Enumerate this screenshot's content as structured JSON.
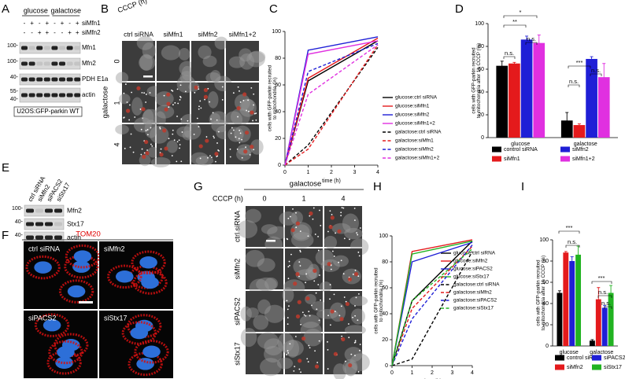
{
  "panel_labels": [
    "A",
    "B",
    "C",
    "D",
    "E",
    "F",
    "G",
    "H",
    "I"
  ],
  "panel_a": {
    "conditions": [
      "glucose",
      "galactose"
    ],
    "rows": [
      {
        "name": "siMfn1",
        "signs": [
          "-",
          "+",
          "-",
          "+",
          "-",
          "+",
          "-",
          "+"
        ]
      },
      {
        "name": "siMfn2",
        "signs": [
          "-",
          "-",
          "+",
          "+",
          "-",
          "-",
          "+",
          "+"
        ]
      }
    ],
    "blots": [
      {
        "label": "Mfn1",
        "markers": [
          "100-"
        ]
      },
      {
        "label": "Mfn2",
        "markers": [
          "100-"
        ]
      },
      {
        "label": "PDH E1a",
        "markers": [
          "40-"
        ]
      },
      {
        "label": "actin",
        "markers": [
          "55-",
          "40-"
        ]
      }
    ],
    "cell_line": "U2OS:GFP-parkin WT"
  },
  "panel_b": {
    "treatment_label": "CCCP (h)",
    "condition": "galactose",
    "columns": [
      "ctrl siRNA",
      "siMfn1",
      "siMfn2",
      "siMfn1+2"
    ],
    "rows": [
      "0",
      "1",
      "4"
    ]
  },
  "panel_e": {
    "lanes": [
      "ctrl siRNA",
      "siMfn2",
      "siPACS2",
      "siStx17"
    ],
    "blots": [
      {
        "label": "Mfn2",
        "marker": "100-"
      },
      {
        "label": "Stx17",
        "marker": "40-"
      },
      {
        "label": "actin",
        "marker": "40-"
      }
    ]
  },
  "panel_f": {
    "stain": "TOM20",
    "images": [
      "ctrl siRNA",
      "siMfn2",
      "siPACS2",
      "siStx17"
    ]
  },
  "panel_g": {
    "condition": "galactose",
    "treatment_label": "CCCP (h)",
    "columns": [
      "0",
      "1",
      "4"
    ],
    "rows": [
      "ctrl siRNA",
      "siMfn2",
      "siPACS2",
      "siStx17"
    ]
  },
  "chart_data": [
    {
      "type": "line",
      "xlabel": "time (h)",
      "ylabel": [
        "cells with GFP-parkin recruited",
        "to mitochondria (%)"
      ],
      "x": [
        0,
        1,
        4
      ],
      "xlim": [
        0,
        4
      ],
      "xticks": [
        0,
        1,
        2,
        3,
        4
      ],
      "ylim": [
        0,
        100
      ],
      "yticks": [
        0,
        20,
        40,
        60,
        80,
        100
      ],
      "series": [
        {
          "name": "glucose:ctrl siRNA",
          "color": "#000000",
          "line_style": "solid",
          "values": [
            0,
            63,
            93
          ]
        },
        {
          "name": "glucose:siMfn1",
          "color": "#e41a1c",
          "line_style": "solid",
          "values": [
            0,
            65,
            95
          ]
        },
        {
          "name": "glucose:siMfn2",
          "color": "#1f1fd6",
          "line_style": "solid",
          "values": [
            0,
            86,
            96
          ]
        },
        {
          "name": "glucose:siMfn1+2",
          "color": "#e030e0",
          "line_style": "solid",
          "values": [
            0,
            83,
            93
          ]
        },
        {
          "name": "galactose:ctrl siRNA",
          "color": "#000000",
          "line_style": "dashed",
          "values": [
            0,
            15,
            88
          ]
        },
        {
          "name": "galactose:siMfn1",
          "color": "#e41a1c",
          "line_style": "dashed",
          "values": [
            0,
            12,
            90
          ]
        },
        {
          "name": "galactose:siMfn2",
          "color": "#1f1fd6",
          "line_style": "dashed",
          "values": [
            0,
            70,
            91
          ]
        },
        {
          "name": "galactose:siMfn1+2",
          "color": "#e030e0",
          "line_style": "dashed",
          "values": [
            0,
            53,
            90
          ]
        }
      ]
    },
    {
      "type": "bar",
      "ylabel": [
        "cells with GFP-parkin recruited",
        "to mitochondria after 1h CCCP (%)"
      ],
      "categories": [
        "glucose",
        "galactose"
      ],
      "ylim": [
        0,
        100
      ],
      "yticks": [
        0,
        20,
        40,
        60,
        80,
        100
      ],
      "series": [
        {
          "name": "control siRNA",
          "color": "#000000",
          "values": [
            63,
            15
          ],
          "errors": [
            4,
            7
          ]
        },
        {
          "name": "siMfn1",
          "color": "#e41a1c",
          "values": [
            65,
            11
          ],
          "errors": [
            1,
            1
          ]
        },
        {
          "name": "siMfn2",
          "color": "#1f1fd6",
          "values": [
            86,
            69
          ],
          "errors": [
            3,
            2
          ]
        },
        {
          "name": "siMfn1+2",
          "color": "#e030e0",
          "values": [
            83,
            53
          ],
          "errors": [
            7,
            12
          ]
        }
      ],
      "annotations": [
        "n.s.",
        "*",
        "**",
        "n.s.",
        "***",
        "n.s.",
        "n.s."
      ]
    },
    {
      "type": "line",
      "xlabel": "time (h)",
      "ylabel": [
        "cells with GFP-parkin recruited",
        "to mitochondria (%)"
      ],
      "x": [
        0,
        1,
        4
      ],
      "xlim": [
        0,
        4
      ],
      "xticks": [
        0,
        1,
        2,
        3,
        4
      ],
      "ylim": [
        0,
        100
      ],
      "yticks": [
        0,
        20,
        40,
        60,
        80,
        100
      ],
      "series": [
        {
          "name": "glucose:ctrl siRNA",
          "color": "#000000",
          "line_style": "solid",
          "values": [
            0,
            50,
            96
          ]
        },
        {
          "name": "glucose:siMfn2",
          "color": "#e41a1c",
          "line_style": "solid",
          "values": [
            0,
            88,
            97
          ]
        },
        {
          "name": "glucose:siPACS2",
          "color": "#1f1fd6",
          "line_style": "solid",
          "values": [
            0,
            80,
            95
          ]
        },
        {
          "name": "glucose:siStx17",
          "color": "#22b322",
          "line_style": "solid",
          "values": [
            0,
            86,
            96
          ]
        },
        {
          "name": "galactose:ctrl siRNA",
          "color": "#000000",
          "line_style": "dashed",
          "values": [
            0,
            5,
            88
          ]
        },
        {
          "name": "galactose:siMfn2",
          "color": "#e41a1c",
          "line_style": "dashed",
          "values": [
            0,
            44,
            92
          ]
        },
        {
          "name": "galactose:siPACS2",
          "color": "#1f1fd6",
          "line_style": "dashed",
          "values": [
            0,
            36,
            93
          ]
        },
        {
          "name": "galactose:siStx17",
          "color": "#22b322",
          "line_style": "dashed",
          "values": [
            0,
            50,
            90
          ]
        }
      ]
    },
    {
      "type": "bar",
      "ylabel": [
        "cells with GFP-parkin recruited",
        "to mitochondria after 1h CCCP (%)"
      ],
      "categories": [
        "glucose",
        "galactose"
      ],
      "ylim": [
        0,
        100
      ],
      "yticks": [
        0,
        20,
        40,
        60,
        80,
        100
      ],
      "series": [
        {
          "name": "control siRNA",
          "color": "#000000",
          "values": [
            50,
            5
          ],
          "errors": [
            2,
            1
          ]
        },
        {
          "name": "siMfn2",
          "color": "#e41a1c",
          "values": [
            88,
            44
          ],
          "errors": [
            1,
            11
          ]
        },
        {
          "name": "siPACS2",
          "color": "#1f1fd6",
          "values": [
            80,
            36
          ],
          "errors": [
            4,
            2
          ]
        },
        {
          "name": "siStx17",
          "color": "#22b322",
          "values": [
            86,
            50
          ],
          "errors": [
            8,
            7
          ]
        }
      ],
      "annotations": [
        "***",
        "n.s.",
        "***",
        "n.s.",
        "n.s."
      ]
    }
  ]
}
